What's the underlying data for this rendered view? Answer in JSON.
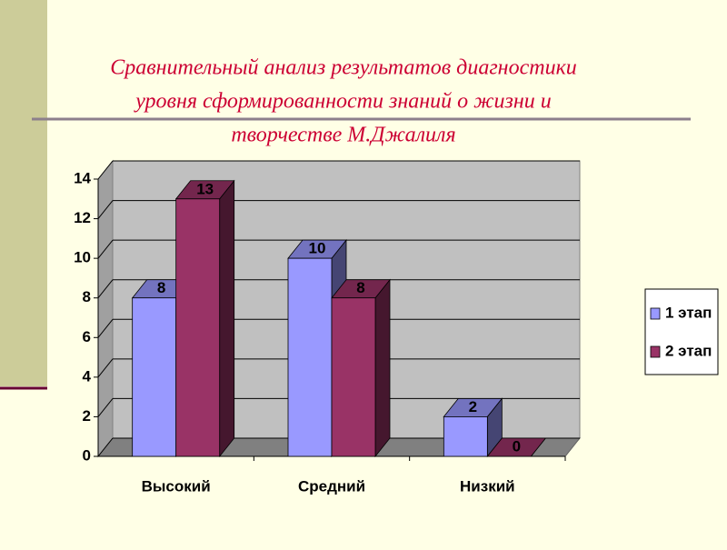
{
  "chart_data": {
    "type": "bar3d",
    "title": [
      "Сравнительный анализ результатов диагностики",
      "уровня сформированности знаний о  жизни  и",
      "творчестве  М.Джалиля"
    ],
    "categories": [
      "Высокий",
      "Средний",
      "Низкий"
    ],
    "series": [
      {
        "name": "1 этап",
        "color": "#9999ff",
        "values": [
          8,
          10,
          2
        ]
      },
      {
        "name": "2 этап",
        "color": "#993366",
        "values": [
          13,
          8,
          0
        ]
      }
    ],
    "ylim": [
      0,
      14
    ],
    "yticks": [
      0,
      2,
      4,
      6,
      8,
      10,
      12,
      14
    ],
    "grid": true,
    "legend": "right"
  }
}
